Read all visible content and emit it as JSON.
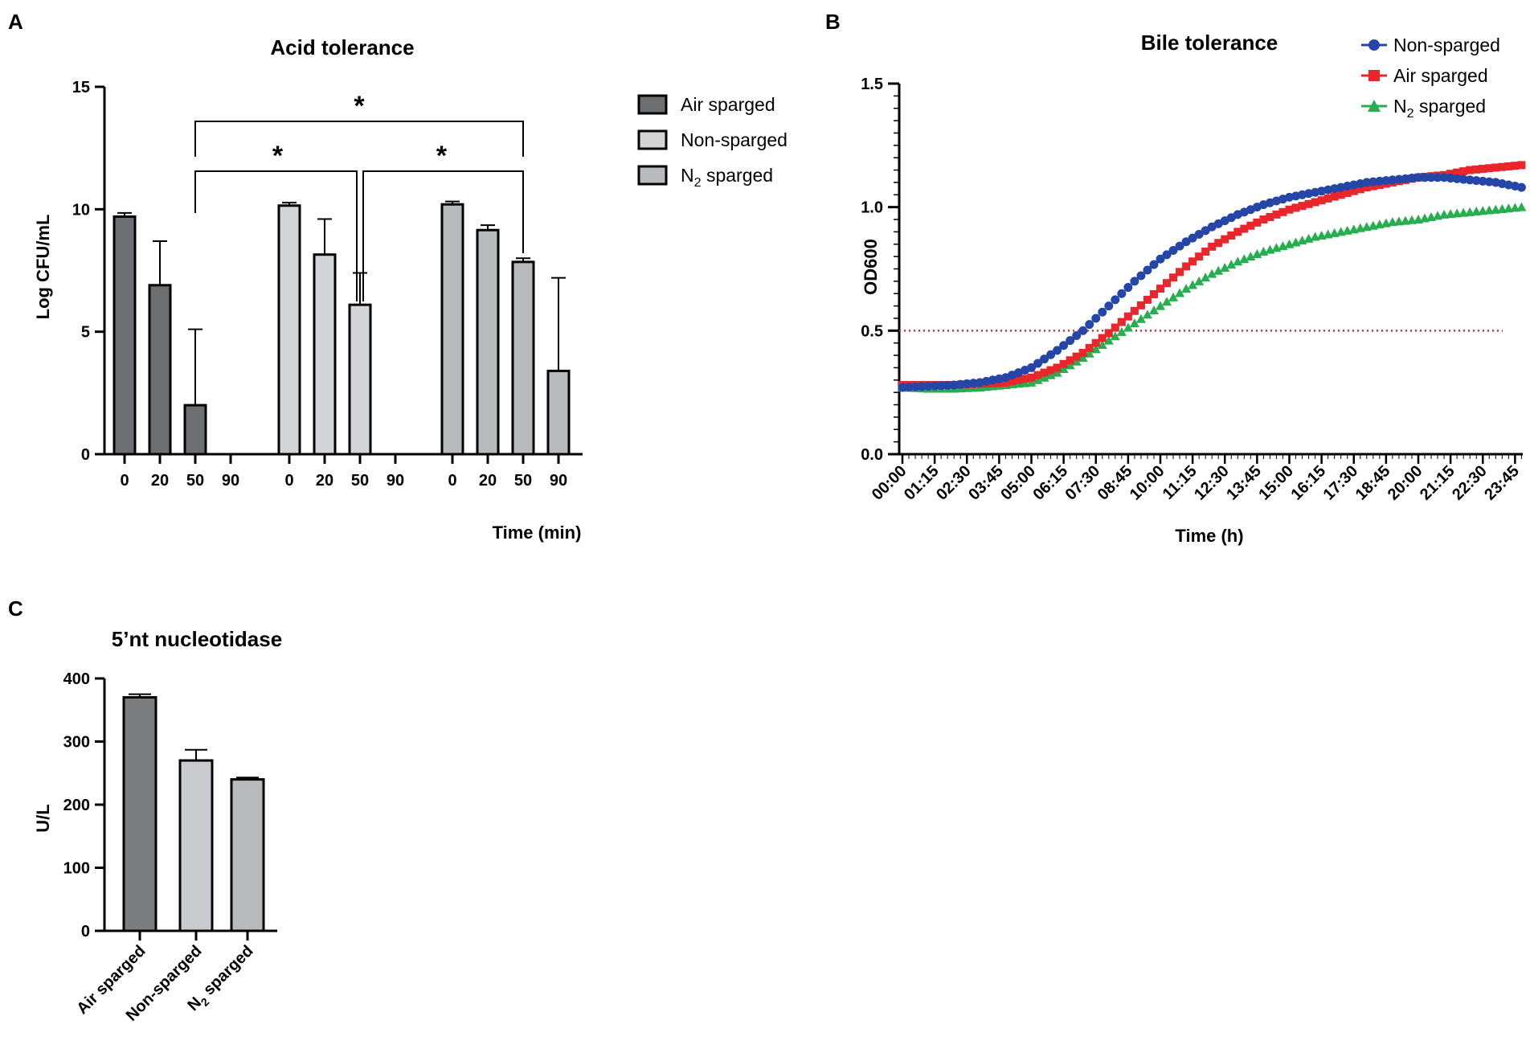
{
  "panels": [
    {
      "letter": "A",
      "chart_data": {
        "type": "bar",
        "title": "Acid tolerance",
        "xlabel": "Time (min)",
        "ylabel": "Log CFU/mL",
        "ylim": [
          0,
          15
        ],
        "yticks": [
          "0",
          "5",
          "10",
          "15"
        ],
        "categories": [
          "0",
          "20",
          "50",
          "90"
        ],
        "legend_position": "right",
        "colors": {
          "Air sparged": "#6d6f70",
          "Non-sparged": "#d3d4d5",
          "N2 sparged": "#b9babb"
        },
        "series": [
          {
            "name": "Air sparged",
            "legend_label": "Air sparged",
            "values": [
              9.7,
              6.9,
              2.0,
              0
            ],
            "errors": [
              0.15,
              1.8,
              3.1,
              0
            ]
          },
          {
            "name": "Non-sparged",
            "legend_label": "Non-sparged",
            "values": [
              10.15,
              8.15,
              6.1,
              0
            ],
            "errors": [
              0.12,
              1.45,
              1.3,
              0
            ]
          },
          {
            "name": "N2 sparged",
            "legend_label": "N",
            "legend_sub": "2",
            "legend_rest": " sparged",
            "values": [
              10.2,
              9.15,
              7.85,
              3.4
            ],
            "errors": [
              0.12,
              0.2,
              0.15,
              3.8
            ]
          }
        ],
        "significance": [
          {
            "from": "Air sparged 50",
            "to": "Non-sparged 50",
            "label": "*"
          },
          {
            "from": "Non-sparged 50",
            "to": "N2 sparged 50",
            "label": "*"
          },
          {
            "from": "Air sparged 50",
            "to": "N2 sparged 50",
            "label": "*"
          }
        ]
      }
    },
    {
      "letter": "B",
      "chart_data": {
        "type": "line",
        "title": "Bile tolerance",
        "xlabel": "Time (h)",
        "ylabel": "OD600",
        "ylim": [
          0.0,
          1.5
        ],
        "yticks": [
          "0.0",
          "0.5",
          "1.0",
          "1.5"
        ],
        "xlim_hours": [
          0,
          24
        ],
        "xticks": [
          "00:00",
          "01:15",
          "02:30",
          "03:45",
          "05:00",
          "06:15",
          "07:30",
          "08:45",
          "10:00",
          "11:15",
          "12:30",
          "13:45",
          "15:00",
          "16:15",
          "17:30",
          "18:45",
          "20:00",
          "21:15",
          "22:30",
          "23:45"
        ],
        "reference_line": {
          "y": 0.5,
          "color": "#e8262b",
          "style": "dotted"
        },
        "legend_position": "top-right",
        "series": [
          {
            "name": "Non-sparged",
            "legend_label": "Non-sparged",
            "color": "#2546a6",
            "marker": "circle",
            "x_hours": [
              0,
              1,
              2,
              3,
              4,
              5,
              6,
              7,
              8,
              9,
              10,
              11,
              12,
              13,
              14,
              15,
              16,
              17,
              18,
              19,
              20,
              21,
              22,
              23,
              24
            ],
            "y": [
              0.27,
              0.275,
              0.28,
              0.29,
              0.31,
              0.35,
              0.42,
              0.5,
              0.6,
              0.7,
              0.79,
              0.86,
              0.92,
              0.97,
              1.01,
              1.04,
              1.06,
              1.08,
              1.1,
              1.11,
              1.12,
              1.12,
              1.11,
              1.1,
              1.08
            ]
          },
          {
            "name": "Air sparged",
            "legend_label": "Air sparged",
            "color": "#e8262b",
            "marker": "square",
            "x_hours": [
              0,
              1,
              2,
              3,
              4,
              5,
              6,
              7,
              8,
              9,
              10,
              11,
              12,
              13,
              14,
              15,
              16,
              17,
              18,
              19,
              20,
              21,
              22,
              23,
              24
            ],
            "y": [
              0.28,
              0.28,
              0.28,
              0.285,
              0.29,
              0.31,
              0.35,
              0.41,
              0.49,
              0.58,
              0.67,
              0.76,
              0.84,
              0.9,
              0.95,
              0.99,
              1.02,
              1.05,
              1.08,
              1.1,
              1.12,
              1.13,
              1.15,
              1.16,
              1.17
            ]
          },
          {
            "name": "N2 sparged",
            "legend_label": "N",
            "legend_sub": "2",
            "legend_rest": " sparged",
            "color": "#27ae4f",
            "marker": "triangle",
            "x_hours": [
              0,
              1,
              2,
              3,
              4,
              5,
              6,
              7,
              8,
              9,
              10,
              11,
              12,
              13,
              14,
              15,
              16,
              17,
              18,
              19,
              20,
              21,
              22,
              23,
              24
            ],
            "y": [
              0.27,
              0.265,
              0.265,
              0.27,
              0.28,
              0.29,
              0.33,
              0.39,
              0.46,
              0.53,
              0.6,
              0.67,
              0.73,
              0.78,
              0.82,
              0.85,
              0.88,
              0.9,
              0.92,
              0.94,
              0.95,
              0.97,
              0.98,
              0.99,
              1.0
            ]
          }
        ]
      }
    },
    {
      "letter": "C",
      "chart_data": {
        "type": "bar",
        "title": "5’nt nucleotidase",
        "xlabel": "",
        "ylabel": "U/L",
        "ylim": [
          0,
          400
        ],
        "yticks": [
          "0",
          "100",
          "200",
          "300",
          "400"
        ],
        "categories": [
          "Air sparged",
          "Non-sparged",
          "N2 sparged"
        ],
        "category_labels": [
          {
            "main": "Air sparged"
          },
          {
            "main": "Non-sparged"
          },
          {
            "main": "N",
            "sub": "2",
            "rest": " sparged"
          }
        ],
        "values": [
          370,
          270,
          240
        ],
        "errors": [
          5,
          17,
          3
        ],
        "colors": [
          "#7b7d7e",
          "#cacbcc",
          "#b9babb"
        ]
      }
    }
  ]
}
